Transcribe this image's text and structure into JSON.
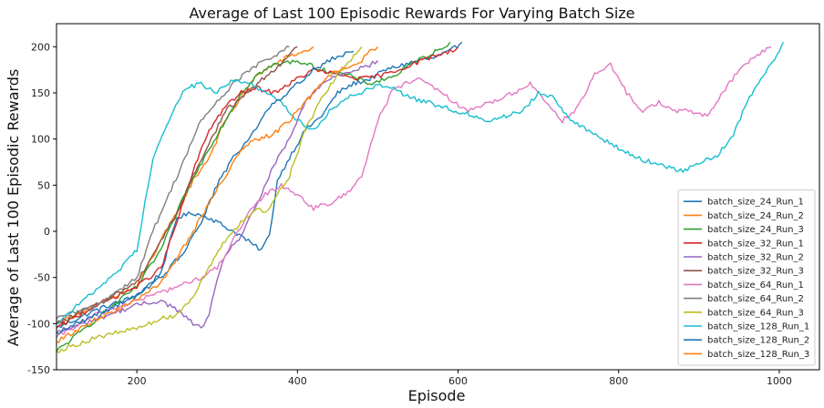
{
  "chart_data": {
    "type": "line",
    "title": "Average of Last 100 Episodic Rewards For Varying Batch Size",
    "xlabel": "Episode",
    "ylabel": "Average of Last 100 Episodic Rewards",
    "xlim": [
      100,
      1050
    ],
    "ylim": [
      -150,
      225
    ],
    "xticks": [
      200,
      400,
      600,
      800,
      1000
    ],
    "yticks": [
      -150,
      -100,
      -50,
      0,
      50,
      100,
      150,
      200
    ],
    "legend_position": "lower-right",
    "grid": false,
    "series": [
      {
        "name": "batch_size_24_Run_1",
        "color": "#1f77b4",
        "points": [
          [
            100,
            -105
          ],
          [
            150,
            -85
          ],
          [
            200,
            -70
          ],
          [
            230,
            -45
          ],
          [
            250,
            15
          ],
          [
            270,
            20
          ],
          [
            290,
            15
          ],
          [
            310,
            5
          ],
          [
            330,
            -5
          ],
          [
            345,
            -15
          ],
          [
            355,
            -20
          ],
          [
            365,
            -5
          ],
          [
            375,
            55
          ],
          [
            390,
            80
          ],
          [
            410,
            110
          ],
          [
            430,
            125
          ],
          [
            450,
            150
          ],
          [
            470,
            160
          ],
          [
            490,
            165
          ],
          [
            510,
            175
          ],
          [
            530,
            180
          ],
          [
            550,
            185
          ],
          [
            570,
            188
          ],
          [
            590,
            195
          ],
          [
            605,
            205
          ]
        ]
      },
      {
        "name": "batch_size_24_Run_2",
        "color": "#ff7f0e",
        "points": [
          [
            100,
            -100
          ],
          [
            150,
            -80
          ],
          [
            200,
            -60
          ],
          [
            230,
            -10
          ],
          [
            250,
            20
          ],
          [
            270,
            55
          ],
          [
            290,
            80
          ],
          [
            310,
            120
          ],
          [
            330,
            145
          ],
          [
            350,
            170
          ],
          [
            370,
            180
          ],
          [
            390,
            190
          ],
          [
            410,
            195
          ],
          [
            420,
            200
          ]
        ]
      },
      {
        "name": "batch_size_24_Run_3",
        "color": "#2ca02c",
        "points": [
          [
            100,
            -130
          ],
          [
            150,
            -95
          ],
          [
            200,
            -60
          ],
          [
            230,
            -20
          ],
          [
            260,
            40
          ],
          [
            290,
            90
          ],
          [
            310,
            120
          ],
          [
            330,
            150
          ],
          [
            350,
            170
          ],
          [
            370,
            180
          ],
          [
            400,
            185
          ],
          [
            430,
            175
          ],
          [
            460,
            170
          ],
          [
            490,
            160
          ],
          [
            520,
            168
          ],
          [
            540,
            180
          ],
          [
            560,
            190
          ],
          [
            580,
            198
          ],
          [
            590,
            205
          ]
        ]
      },
      {
        "name": "batch_size_32_Run_1",
        "color": "#d62728",
        "points": [
          [
            100,
            -105
          ],
          [
            150,
            -80
          ],
          [
            200,
            -60
          ],
          [
            230,
            -40
          ],
          [
            250,
            10
          ],
          [
            270,
            65
          ],
          [
            290,
            110
          ],
          [
            310,
            135
          ],
          [
            330,
            150
          ],
          [
            350,
            155
          ],
          [
            370,
            150
          ],
          [
            390,
            160
          ],
          [
            420,
            175
          ],
          [
            450,
            170
          ],
          [
            480,
            165
          ],
          [
            510,
            170
          ],
          [
            540,
            180
          ],
          [
            570,
            190
          ],
          [
            590,
            195
          ],
          [
            600,
            200
          ]
        ]
      },
      {
        "name": "batch_size_32_Run_2",
        "color": "#9467bd",
        "points": [
          [
            100,
            -110
          ],
          [
            150,
            -95
          ],
          [
            200,
            -80
          ],
          [
            230,
            -75
          ],
          [
            250,
            -85
          ],
          [
            270,
            -100
          ],
          [
            280,
            -105
          ],
          [
            290,
            -90
          ],
          [
            300,
            -55
          ],
          [
            310,
            -25
          ],
          [
            330,
            -5
          ],
          [
            350,
            30
          ],
          [
            370,
            70
          ],
          [
            390,
            100
          ],
          [
            410,
            140
          ],
          [
            430,
            160
          ],
          [
            450,
            170
          ],
          [
            470,
            175
          ],
          [
            490,
            180
          ],
          [
            500,
            185
          ]
        ]
      },
      {
        "name": "batch_size_32_Run_3",
        "color": "#8c564b",
        "points": [
          [
            100,
            -100
          ],
          [
            150,
            -80
          ],
          [
            200,
            -55
          ],
          [
            230,
            -10
          ],
          [
            250,
            20
          ],
          [
            270,
            60
          ],
          [
            290,
            95
          ],
          [
            310,
            130
          ],
          [
            330,
            145
          ],
          [
            350,
            160
          ],
          [
            370,
            175
          ],
          [
            390,
            190
          ],
          [
            400,
            200
          ]
        ]
      },
      {
        "name": "batch_size_64_Run_1",
        "color": "#e377c2",
        "points": [
          [
            100,
            -115
          ],
          [
            150,
            -90
          ],
          [
            200,
            -75
          ],
          [
            250,
            -60
          ],
          [
            280,
            -50
          ],
          [
            300,
            -40
          ],
          [
            320,
            -10
          ],
          [
            340,
            20
          ],
          [
            360,
            40
          ],
          [
            380,
            50
          ],
          [
            400,
            40
          ],
          [
            420,
            25
          ],
          [
            440,
            30
          ],
          [
            460,
            40
          ],
          [
            480,
            60
          ],
          [
            500,
            120
          ],
          [
            520,
            155
          ],
          [
            550,
            165
          ],
          [
            580,
            150
          ],
          [
            610,
            130
          ],
          [
            640,
            140
          ],
          [
            670,
            150
          ],
          [
            690,
            160
          ],
          [
            710,
            140
          ],
          [
            730,
            120
          ],
          [
            750,
            135
          ],
          [
            770,
            170
          ],
          [
            790,
            180
          ],
          [
            810,
            150
          ],
          [
            830,
            130
          ],
          [
            850,
            140
          ],
          [
            870,
            130
          ],
          [
            890,
            130
          ],
          [
            910,
            125
          ],
          [
            930,
            150
          ],
          [
            950,
            175
          ],
          [
            970,
            190
          ],
          [
            990,
            200
          ]
        ]
      },
      {
        "name": "batch_size_64_Run_2",
        "color": "#7f7f7f",
        "points": [
          [
            100,
            -95
          ],
          [
            150,
            -80
          ],
          [
            200,
            -50
          ],
          [
            220,
            0
          ],
          [
            240,
            40
          ],
          [
            260,
            80
          ],
          [
            280,
            120
          ],
          [
            300,
            140
          ],
          [
            320,
            160
          ],
          [
            340,
            175
          ],
          [
            360,
            185
          ],
          [
            380,
            195
          ],
          [
            390,
            200
          ]
        ]
      },
      {
        "name": "batch_size_64_Run_3",
        "color": "#bcbd22",
        "points": [
          [
            100,
            -130
          ],
          [
            150,
            -115
          ],
          [
            200,
            -105
          ],
          [
            230,
            -95
          ],
          [
            250,
            -90
          ],
          [
            270,
            -70
          ],
          [
            290,
            -40
          ],
          [
            310,
            -10
          ],
          [
            330,
            10
          ],
          [
            350,
            25
          ],
          [
            360,
            20
          ],
          [
            375,
            40
          ],
          [
            390,
            60
          ],
          [
            410,
            110
          ],
          [
            430,
            145
          ],
          [
            450,
            170
          ],
          [
            460,
            180
          ],
          [
            470,
            190
          ],
          [
            480,
            200
          ]
        ]
      },
      {
        "name": "batch_size_128_Run_1",
        "color": "#17becf",
        "points": [
          [
            100,
            -100
          ],
          [
            140,
            -70
          ],
          [
            180,
            -40
          ],
          [
            200,
            -20
          ],
          [
            210,
            30
          ],
          [
            220,
            80
          ],
          [
            240,
            120
          ],
          [
            260,
            155
          ],
          [
            280,
            160
          ],
          [
            300,
            150
          ],
          [
            320,
            165
          ],
          [
            340,
            160
          ],
          [
            360,
            150
          ],
          [
            380,
            140
          ],
          [
            400,
            120
          ],
          [
            420,
            110
          ],
          [
            440,
            130
          ],
          [
            460,
            145
          ],
          [
            480,
            150
          ],
          [
            500,
            160
          ],
          [
            520,
            155
          ],
          [
            540,
            145
          ],
          [
            560,
            140
          ],
          [
            580,
            135
          ],
          [
            600,
            130
          ],
          [
            620,
            125
          ],
          [
            640,
            120
          ],
          [
            660,
            125
          ],
          [
            680,
            130
          ],
          [
            700,
            150
          ],
          [
            720,
            145
          ],
          [
            740,
            120
          ],
          [
            760,
            110
          ],
          [
            780,
            100
          ],
          [
            800,
            90
          ],
          [
            820,
            80
          ],
          [
            840,
            75
          ],
          [
            860,
            70
          ],
          [
            880,
            65
          ],
          [
            900,
            75
          ],
          [
            920,
            80
          ],
          [
            940,
            100
          ],
          [
            960,
            140
          ],
          [
            980,
            170
          ],
          [
            1000,
            195
          ],
          [
            1005,
            205
          ]
        ]
      },
      {
        "name": "batch_size_128_Run_2",
        "color": "#1f77b4",
        "points": [
          [
            100,
            -110
          ],
          [
            150,
            -90
          ],
          [
            200,
            -70
          ],
          [
            230,
            -50
          ],
          [
            260,
            -20
          ],
          [
            280,
            10
          ],
          [
            300,
            50
          ],
          [
            320,
            80
          ],
          [
            340,
            100
          ],
          [
            360,
            130
          ],
          [
            380,
            145
          ],
          [
            400,
            160
          ],
          [
            420,
            175
          ],
          [
            440,
            185
          ],
          [
            450,
            190
          ],
          [
            460,
            192
          ],
          [
            470,
            195
          ]
        ]
      },
      {
        "name": "batch_size_128_Run_3",
        "color": "#ff7f0e",
        "points": [
          [
            100,
            -120
          ],
          [
            150,
            -95
          ],
          [
            200,
            -75
          ],
          [
            230,
            -55
          ],
          [
            250,
            -30
          ],
          [
            270,
            0
          ],
          [
            290,
            30
          ],
          [
            310,
            60
          ],
          [
            330,
            90
          ],
          [
            350,
            100
          ],
          [
            370,
            105
          ],
          [
            390,
            120
          ],
          [
            410,
            140
          ],
          [
            430,
            160
          ],
          [
            450,
            175
          ],
          [
            470,
            180
          ],
          [
            480,
            185
          ],
          [
            490,
            195
          ],
          [
            500,
            200
          ]
        ]
      }
    ]
  }
}
